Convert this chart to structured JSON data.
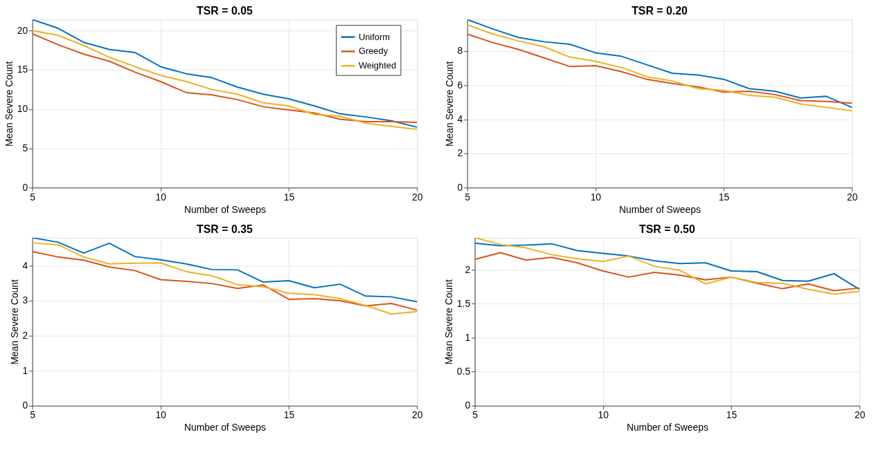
{
  "chart_data": [
    {
      "type": "line",
      "title": "TSR = 0.05",
      "xlabel": "Number of Sweeps",
      "ylabel": "Mean Severe Count",
      "x": [
        5,
        6,
        7,
        8,
        9,
        10,
        11,
        12,
        13,
        14,
        15,
        16,
        17,
        18,
        19,
        20
      ],
      "xlim": [
        5,
        20
      ],
      "xticks": [
        5,
        10,
        15,
        20
      ],
      "ylim": [
        0,
        21.4
      ],
      "yticks": [
        0,
        5,
        10,
        15,
        20
      ],
      "grid": true,
      "legend": "top right",
      "line_style": "solid",
      "series": [
        {
          "name": "Uniform",
          "color": "#0072bd",
          "values": [
            21.4,
            20.3,
            18.5,
            17.6,
            17.2,
            15.4,
            14.5,
            14.0,
            12.8,
            11.9,
            11.3,
            10.4,
            9.4,
            9.0,
            8.5,
            7.7
          ]
        },
        {
          "name": "Greedy",
          "color": "#d95319",
          "values": [
            19.6,
            18.2,
            17.0,
            16.1,
            14.7,
            13.5,
            12.1,
            11.8,
            11.2,
            10.3,
            9.9,
            9.5,
            8.7,
            8.4,
            8.4,
            8.3
          ]
        },
        {
          "name": "Weighted",
          "color": "#edb120",
          "values": [
            20.0,
            19.4,
            18.1,
            16.6,
            15.4,
            14.3,
            13.5,
            12.5,
            11.9,
            10.8,
            10.4,
            9.3,
            9.1,
            8.2,
            7.8,
            7.4
          ]
        }
      ]
    },
    {
      "type": "line",
      "title": "TSR = 0.20",
      "xlabel": "Number of Sweeps",
      "ylabel": "Mean Severe Count",
      "x": [
        5,
        6,
        7,
        8,
        9,
        10,
        11,
        12,
        13,
        14,
        15,
        16,
        17,
        18,
        19,
        20
      ],
      "xlim": [
        5,
        20
      ],
      "xticks": [
        5,
        10,
        15,
        20
      ],
      "ylim": [
        0,
        9.85
      ],
      "yticks": [
        0,
        2,
        4,
        6,
        8
      ],
      "grid": true,
      "line_style": "solid",
      "series": [
        {
          "name": "Uniform",
          "color": "#0072bd",
          "values": [
            9.85,
            9.3,
            8.8,
            8.55,
            8.4,
            7.9,
            7.7,
            7.2,
            6.7,
            6.6,
            6.35,
            5.8,
            5.65,
            5.25,
            5.35,
            4.7
          ]
        },
        {
          "name": "Greedy",
          "color": "#d95319",
          "values": [
            9.0,
            8.5,
            8.1,
            7.6,
            7.1,
            7.15,
            6.8,
            6.35,
            6.1,
            5.9,
            5.6,
            5.65,
            5.45,
            5.1,
            5.05,
            4.95
          ]
        },
        {
          "name": "Weighted",
          "color": "#edb120",
          "values": [
            9.55,
            9.0,
            8.6,
            8.25,
            7.65,
            7.4,
            7.05,
            6.5,
            6.25,
            5.8,
            5.7,
            5.4,
            5.3,
            4.9,
            4.7,
            4.5
          ]
        }
      ]
    },
    {
      "type": "line",
      "title": "TSR = 0.35",
      "xlabel": "Number of Sweeps",
      "ylabel": "Mean Severe Count",
      "x": [
        5,
        6,
        7,
        8,
        9,
        10,
        11,
        12,
        13,
        14,
        15,
        16,
        17,
        18,
        19,
        20
      ],
      "xlim": [
        5,
        20
      ],
      "xticks": [
        5,
        10,
        15,
        20
      ],
      "ylim": [
        0,
        4.8
      ],
      "yticks": [
        0,
        1,
        2,
        3,
        4
      ],
      "grid": true,
      "line_style": "solid",
      "series": [
        {
          "name": "Uniform",
          "color": "#0072bd",
          "values": [
            4.8,
            4.67,
            4.36,
            4.64,
            4.26,
            4.17,
            4.05,
            3.89,
            3.88,
            3.53,
            3.57,
            3.37,
            3.47,
            3.13,
            3.11,
            2.97
          ]
        },
        {
          "name": "Greedy",
          "color": "#d95319",
          "values": [
            4.4,
            4.25,
            4.16,
            3.96,
            3.86,
            3.6,
            3.55,
            3.49,
            3.35,
            3.45,
            3.04,
            3.06,
            3.0,
            2.85,
            2.92,
            2.73
          ]
        },
        {
          "name": "Weighted",
          "color": "#edb120",
          "values": [
            4.65,
            4.6,
            4.25,
            4.05,
            4.07,
            4.08,
            3.83,
            3.71,
            3.46,
            3.4,
            3.21,
            3.17,
            3.06,
            2.86,
            2.62,
            2.69
          ]
        }
      ]
    },
    {
      "type": "line",
      "title": "TSR = 0.50",
      "xlabel": "Number of Sweeps",
      "ylabel": "Mean Severe Count",
      "x": [
        5,
        6,
        7,
        8,
        9,
        10,
        11,
        12,
        13,
        14,
        15,
        16,
        17,
        18,
        19,
        20
      ],
      "xlim": [
        5,
        20
      ],
      "xticks": [
        5,
        10,
        15,
        20
      ],
      "ylim": [
        0,
        2.47
      ],
      "yticks": [
        0,
        0.5,
        1,
        1.5,
        2
      ],
      "grid": true,
      "line_style": "solid",
      "series": [
        {
          "name": "Uniform",
          "color": "#0072bd",
          "values": [
            2.39,
            2.35,
            2.36,
            2.38,
            2.28,
            2.24,
            2.2,
            2.13,
            2.09,
            2.1,
            1.98,
            1.97,
            1.84,
            1.83,
            1.94,
            1.71
          ]
        },
        {
          "name": "Greedy",
          "color": "#d95319",
          "values": [
            2.15,
            2.25,
            2.14,
            2.18,
            2.1,
            1.98,
            1.89,
            1.96,
            1.92,
            1.85,
            1.89,
            1.8,
            1.72,
            1.79,
            1.69,
            1.73
          ]
        },
        {
          "name": "Weighted",
          "color": "#edb120",
          "values": [
            2.47,
            2.37,
            2.32,
            2.22,
            2.16,
            2.12,
            2.2,
            2.05,
            1.99,
            1.79,
            1.89,
            1.81,
            1.8,
            1.71,
            1.64,
            1.68
          ]
        }
      ]
    }
  ]
}
